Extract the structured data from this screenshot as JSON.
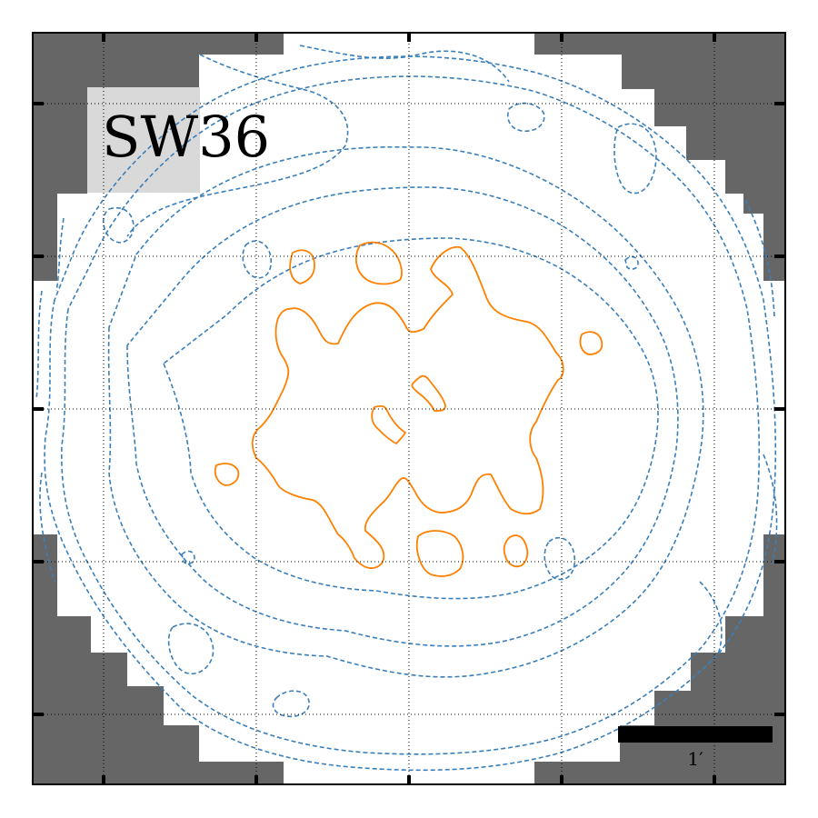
{
  "panel": {
    "label": "SW36",
    "scale_bar_label": "1′"
  },
  "colors": {
    "mask": "#666666",
    "label_box": "#d9d9d9",
    "negative_contours": "#3a7fba",
    "positive_contours": "#ff8000",
    "grid": "#000000",
    "scale_bar": "#000000"
  },
  "legend": {
    "negative_contour_style": "dashed",
    "positive_contour_style": "solid"
  }
}
